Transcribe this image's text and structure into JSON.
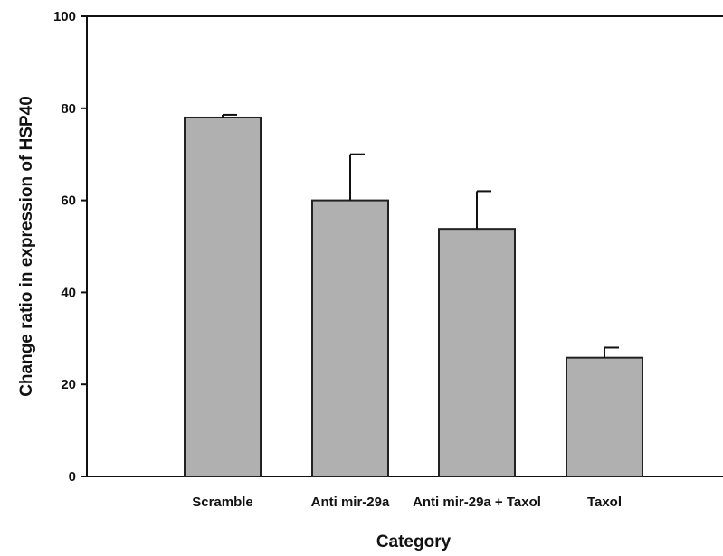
{
  "chart_data": {
    "type": "bar",
    "title": "",
    "xlabel": "Category",
    "ylabel": "Change ratio in expression of HSP40",
    "categories": [
      "Scramble",
      "Anti mir-29a",
      "Anti mir-29a + Taxol",
      "Taxol"
    ],
    "values": [
      78,
      60,
      53.8,
      25.8
    ],
    "error_upper": [
      0.6,
      10,
      8.2,
      2.2
    ],
    "ylim": [
      0,
      100
    ],
    "yticks": [
      0,
      20,
      40,
      60,
      80,
      100
    ],
    "grid": false,
    "bar_color": "#b0b0b0",
    "bar_edge_color": "#222222"
  }
}
